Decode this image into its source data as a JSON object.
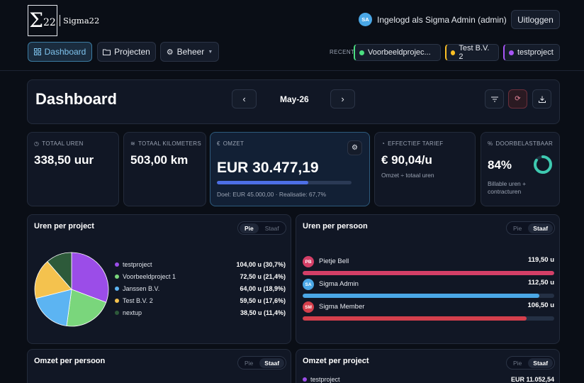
{
  "header": {
    "logo_mark": "22",
    "logo_text": "Sigma22",
    "user_initials": "SA",
    "logged_in_text": "Ingelogd als Sigma Admin (admin)",
    "logout_label": "Uitloggen"
  },
  "nav": {
    "dashboard_label": "Dashboard",
    "projects_label": "Projecten",
    "manage_label": "Beheer",
    "recent_label": "RECENT",
    "recent_items": [
      {
        "label": "Voorbeeldprojec...",
        "color": "#4ade80"
      },
      {
        "label": "Test B.V. 2",
        "color": "#fbbf24"
      },
      {
        "label": "testproject",
        "color": "#a855f7"
      }
    ]
  },
  "toolbar": {
    "title": "Dashboard",
    "period": "May-26",
    "prev_icon": "chevron-left-icon",
    "next_icon": "chevron-right-icon"
  },
  "stats": {
    "hours": {
      "label": "TOTAAL UREN",
      "value": "338,50 uur"
    },
    "km": {
      "label": "TOTAAL KILOMETERS",
      "value": "503,00 km"
    },
    "revenue": {
      "label": "OMZET",
      "value": "EUR 30.477,19",
      "sub": "Doel: EUR 45.000,00 · Realisatie: 67,7%",
      "progress": 0.677
    },
    "rate": {
      "label": "EFFECTIEF TARIEF",
      "value": "€ 90,04/u",
      "sub": "Omzet ÷ totaal uren"
    },
    "billable": {
      "label": "DOORBELASTBAAR",
      "value": "84%",
      "sub": "Billable uren + contracturen",
      "fraction": 0.84
    }
  },
  "hours_per_project": {
    "title": "Uren per project",
    "toggle": [
      "Pie",
      "Staaf"
    ],
    "active": "Pie"
  },
  "chart_data": {
    "type": "pie",
    "title": "Uren per project",
    "labels": [
      "testproject",
      "Voorbeeldproject 1",
      "Janssen B.V.",
      "Test B.V. 2",
      "nextup"
    ],
    "values": [
      104.0,
      72.5,
      64.0,
      59.5,
      38.5
    ],
    "value_labels": [
      "104,00 u (30,7%)",
      "72,50 u (21,4%)",
      "64,00 u (18,9%)",
      "59,50 u (17,6%)",
      "38,50 u (11,4%)"
    ],
    "colors": [
      "#9b4de8",
      "#7ad67c",
      "#5cb4f2",
      "#f4c24e",
      "#2d5a3a"
    ]
  },
  "hours_per_person": {
    "title": "Uren per persoon",
    "toggle": [
      "Pie",
      "Staaf"
    ],
    "active": "Staaf",
    "max": 119.5,
    "people": [
      {
        "initials": "PB",
        "name": "Pietje Bell",
        "value_label": "119,50 u",
        "hours": 119.5,
        "color": "#d43f67"
      },
      {
        "initials": "SA",
        "name": "Sigma Admin",
        "value_label": "112,50 u",
        "hours": 112.5,
        "color": "#4aa7e6"
      },
      {
        "initials": "SM",
        "name": "Sigma Member",
        "value_label": "106,50 u",
        "hours": 106.5,
        "color": "#d43f4c"
      }
    ]
  },
  "revenue_per_person": {
    "title": "Omzet per persoon",
    "toggle": [
      "Pie",
      "Staaf"
    ],
    "active": "Staaf"
  },
  "revenue_per_project": {
    "title": "Omzet per project",
    "toggle": [
      "Pie",
      "Staaf"
    ],
    "active": "Staaf",
    "first_item": {
      "name": "testproject",
      "value": "EUR 11.052,54",
      "color": "#9b4de8"
    }
  }
}
